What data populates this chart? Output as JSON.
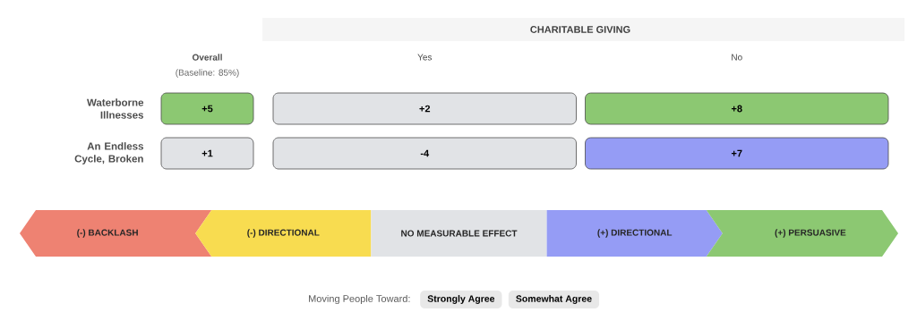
{
  "chart_data": [
    {
      "type": "heatmap",
      "title": "CHARITABLE GIVING",
      "categories": [
        "Overall",
        "Yes",
        "No"
      ],
      "y_categories": [
        "Waterborne Illnesses",
        "An Endless Cycle, Broken"
      ],
      "cells": [
        [
          5,
          2,
          8
        ],
        [
          1,
          -4,
          7
        ]
      ],
      "cell_labels": [
        [
          "+5",
          "+2",
          "+8"
        ],
        [
          "+1",
          "-4",
          "+7"
        ]
      ],
      "colors": [
        [
          "#8cc872",
          "#e1e3e6",
          "#8cc872"
        ],
        [
          "#e1e3e6",
          "#e1e3e6",
          "#959cf5"
        ]
      ],
      "annotations": [
        "(Baseline: 85%)"
      ]
    },
    {
      "type": "other",
      "categories": [
        "(-) BACKLASH",
        "(-) DIRECTIONAL",
        "NO MEASURABLE EFFECT",
        "(+) DIRECTIONAL",
        "(+) PERSUASIVE"
      ],
      "colors": [
        "#ee8272",
        "#f8dc50",
        "#e1e3e6",
        "#959cf5",
        "#8cc872"
      ],
      "annotations": [
        "Moving People Toward:",
        "Strongly Agree",
        "Somewhat Agree"
      ]
    }
  ]
}
